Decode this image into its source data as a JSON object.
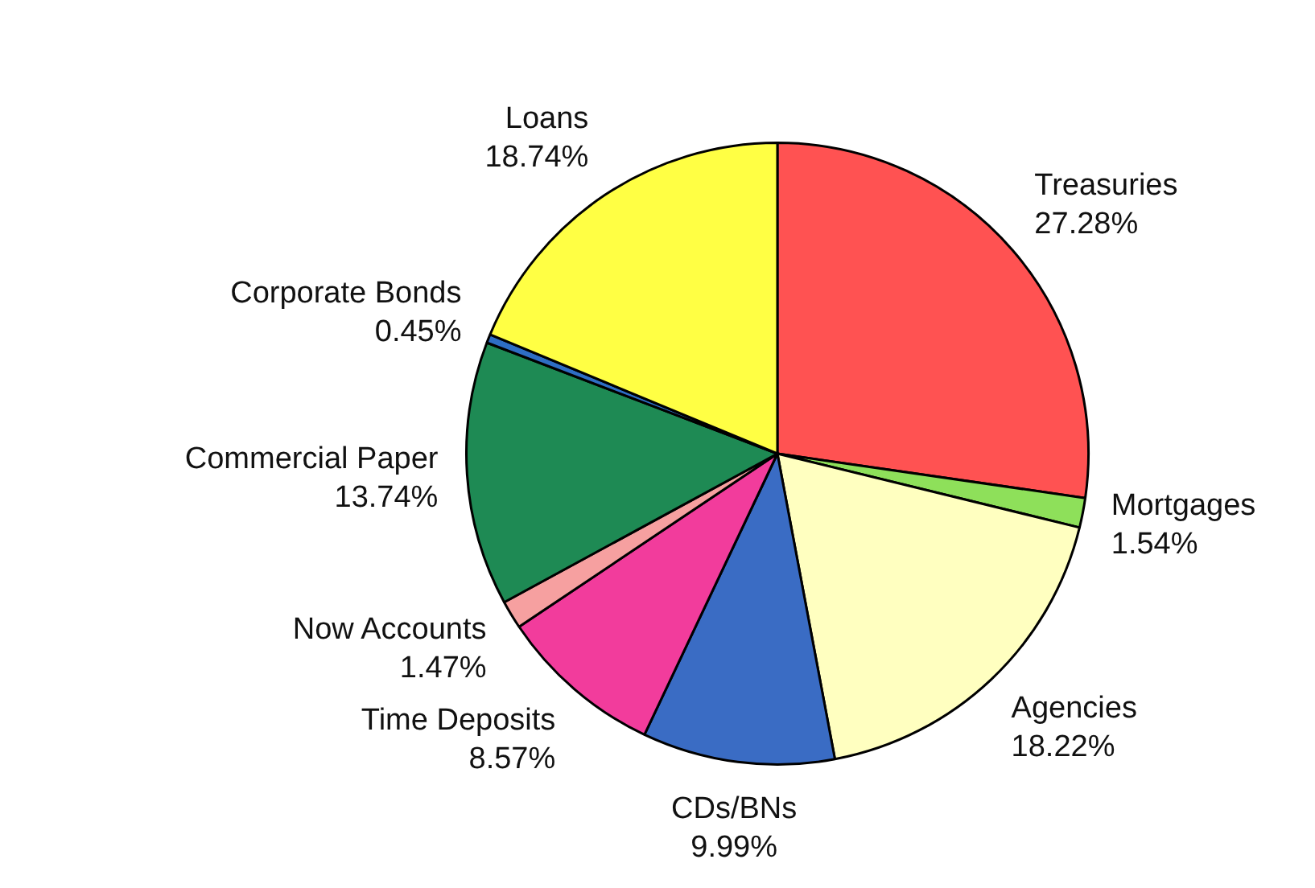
{
  "chart_data": {
    "type": "pie",
    "categories": [
      "Treasuries",
      "Mortgages",
      "Agencies",
      "CDs/BNs",
      "Time Deposits",
      "Now Accounts",
      "Commercial Paper",
      "Corporate Bonds",
      "Loans"
    ],
    "values": [
      27.28,
      1.54,
      18.22,
      9.99,
      8.57,
      1.47,
      13.74,
      0.45,
      18.74
    ],
    "value_labels": [
      "27.28%",
      "1.54%",
      "18.22%",
      "9.99%",
      "8.57%",
      "1.47%",
      "13.74%",
      "0.45%",
      "18.74%"
    ],
    "colors": [
      "#ff5252",
      "#8ee05a",
      "#ffffc0",
      "#3a6cc4",
      "#f23c9c",
      "#f6a0a0",
      "#1e8a54",
      "#2e6ec4",
      "#ffff44"
    ]
  }
}
